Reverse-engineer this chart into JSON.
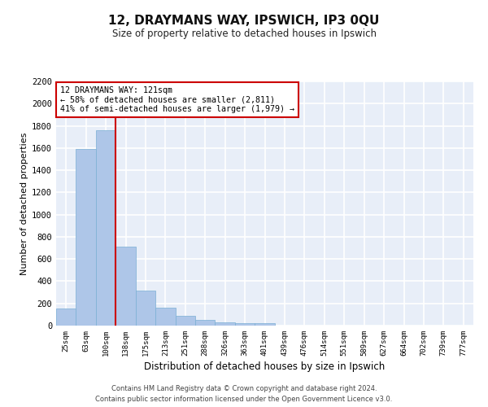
{
  "title_line1": "12, DRAYMANS WAY, IPSWICH, IP3 0QU",
  "title_line2": "Size of property relative to detached houses in Ipswich",
  "xlabel": "Distribution of detached houses by size in Ipswich",
  "ylabel": "Number of detached properties",
  "categories": [
    "25sqm",
    "63sqm",
    "100sqm",
    "138sqm",
    "175sqm",
    "213sqm",
    "251sqm",
    "288sqm",
    "326sqm",
    "363sqm",
    "401sqm",
    "439sqm",
    "476sqm",
    "514sqm",
    "551sqm",
    "589sqm",
    "627sqm",
    "664sqm",
    "702sqm",
    "739sqm",
    "777sqm"
  ],
  "values": [
    155,
    1590,
    1760,
    710,
    315,
    160,
    90,
    55,
    30,
    25,
    20,
    0,
    0,
    0,
    0,
    0,
    0,
    0,
    0,
    0,
    0
  ],
  "bar_color": "#aec6e8",
  "bar_edge_color": "#7aafd4",
  "vline_x": 2.5,
  "vline_color": "#cc0000",
  "annotation_text": "12 DRAYMANS WAY: 121sqm\n← 58% of detached houses are smaller (2,811)\n41% of semi-detached houses are larger (1,979) →",
  "annotation_box_color": "#ffffff",
  "annotation_box_edge": "#cc0000",
  "ylim": [
    0,
    2200
  ],
  "yticks": [
    0,
    200,
    400,
    600,
    800,
    1000,
    1200,
    1400,
    1600,
    1800,
    2000,
    2200
  ],
  "background_color": "#e8eef8",
  "grid_color": "#ffffff",
  "footer_line1": "Contains HM Land Registry data © Crown copyright and database right 2024.",
  "footer_line2": "Contains public sector information licensed under the Open Government Licence v3.0."
}
